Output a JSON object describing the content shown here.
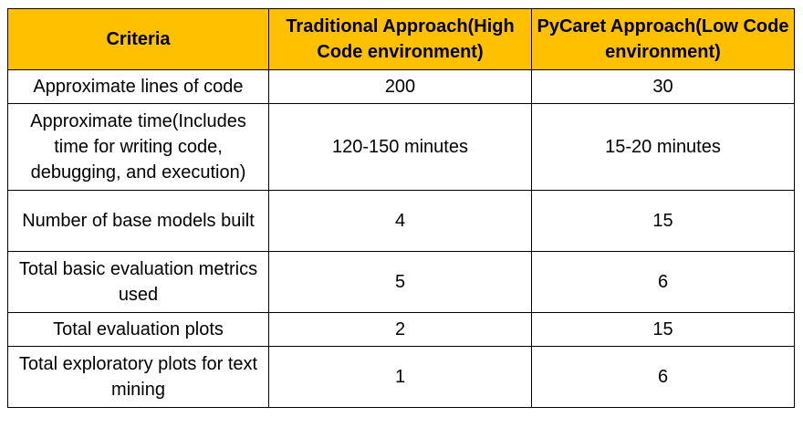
{
  "table": {
    "headers": [
      "Criteria",
      "Traditional Approach(High Code environment)",
      "PyCaret Approach(Low Code environment)"
    ],
    "rows": [
      [
        "Approximate lines of code",
        "200",
        "30"
      ],
      [
        "Approximate time(Includes time for writing code, debugging, and execution)",
        "120-150 minutes",
        "15-20 minutes"
      ],
      [
        "Number of base models built",
        "4",
        "15"
      ],
      [
        "Total basic evaluation metrics used",
        "5",
        "6"
      ],
      [
        "Total evaluation plots",
        "2",
        "15"
      ],
      [
        "Total exploratory plots for text mining",
        "1",
        "6"
      ]
    ]
  },
  "colors": {
    "header_background": "#ffc000",
    "border": "#000000"
  }
}
